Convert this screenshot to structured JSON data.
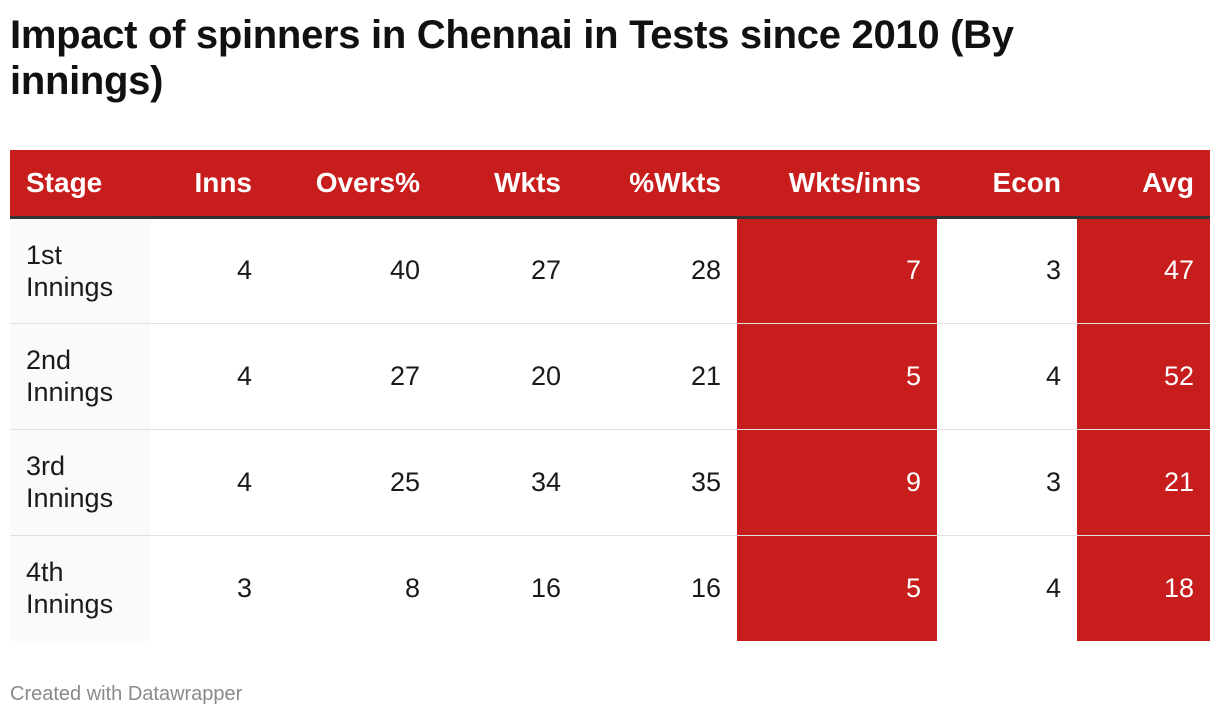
{
  "title": "Impact of spinners in Chennai in Tests since 2010 (By innings)",
  "footer": "Created with Datawrapper",
  "colors": {
    "accent": "#c81d1d",
    "header_text": "#ffffff",
    "stage_cell_bg": "#fafafa"
  },
  "chart_data": {
    "type": "table",
    "title": "Impact of spinners in Chennai in Tests since 2010 (By innings)",
    "columns": [
      "Stage",
      "Inns",
      "Overs%",
      "Wkts",
      "%Wkts",
      "Wkts/inns",
      "Econ",
      "Avg"
    ],
    "highlighted_columns": [
      "Wkts/inns",
      "Avg"
    ],
    "rows": [
      {
        "stage": "1st Innings",
        "inns": "4",
        "overs_pct": "40",
        "wkts": "27",
        "wkts_pct": "28",
        "wkts_per_inns": "7",
        "econ": "3",
        "avg": "47"
      },
      {
        "stage": "2nd Innings",
        "inns": "4",
        "overs_pct": "27",
        "wkts": "20",
        "wkts_pct": "21",
        "wkts_per_inns": "5",
        "econ": "4",
        "avg": "52"
      },
      {
        "stage": "3rd Innings",
        "inns": "4",
        "overs_pct": "25",
        "wkts": "34",
        "wkts_pct": "35",
        "wkts_per_inns": "9",
        "econ": "3",
        "avg": "21"
      },
      {
        "stage": "4th Innings",
        "inns": "3",
        "overs_pct": "8",
        "wkts": "16",
        "wkts_pct": "16",
        "wkts_per_inns": "5",
        "econ": "4",
        "avg": "18"
      }
    ]
  }
}
